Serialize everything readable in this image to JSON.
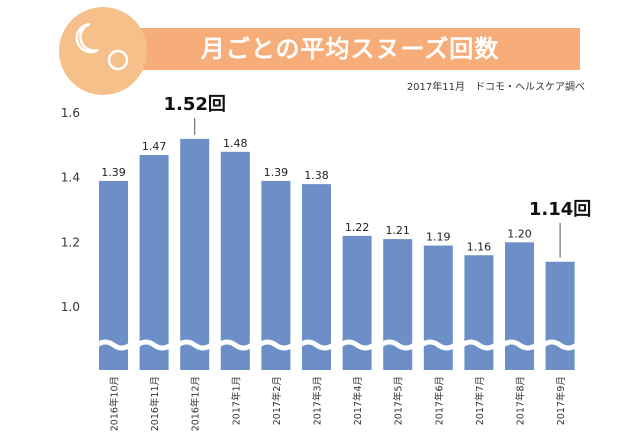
{
  "header": {
    "title": "月ごとの平均スヌーズ回数",
    "source": "2017年11月　ドコモ・ヘルスケア調べ"
  },
  "colors": {
    "bar": "#6b8fc6",
    "title_bg": "#f7ad7a",
    "badge_bg": "#f6c08a",
    "break_line": "#ffffff"
  },
  "icons": [
    "moon-icon",
    "sun-icon"
  ],
  "chart_data": {
    "type": "bar",
    "title": "",
    "xlabel": "",
    "ylabel": "",
    "y_axis_break": true,
    "ylim": [
      0.8,
      1.6
    ],
    "yticks": [
      {
        "value": 1.0,
        "label": "1.0"
      },
      {
        "value": 1.2,
        "label": "1.2"
      },
      {
        "value": 1.4,
        "label": "1.4"
      },
      {
        "value": 1.6,
        "label": "1.6"
      }
    ],
    "grid": false,
    "categories": [
      "2016年10月",
      "2016年11月",
      "2016年12月",
      "2017年1月",
      "2017年2月",
      "2017年3月",
      "2017年4月",
      "2017年5月",
      "2017年6月",
      "2017年7月",
      "2017年8月",
      "2017年9月"
    ],
    "values": [
      1.39,
      1.47,
      1.52,
      1.48,
      1.39,
      1.38,
      1.22,
      1.21,
      1.19,
      1.16,
      1.2,
      1.14
    ],
    "value_labels": [
      "1.39",
      "1.47",
      "",
      "1.48",
      "1.39",
      "1.38",
      "1.22",
      "1.21",
      "1.19",
      "1.16",
      "1.20",
      ""
    ],
    "annotations": [
      {
        "index": 2,
        "text": "1.52回"
      },
      {
        "index": 11,
        "text": "1.14回"
      }
    ]
  }
}
